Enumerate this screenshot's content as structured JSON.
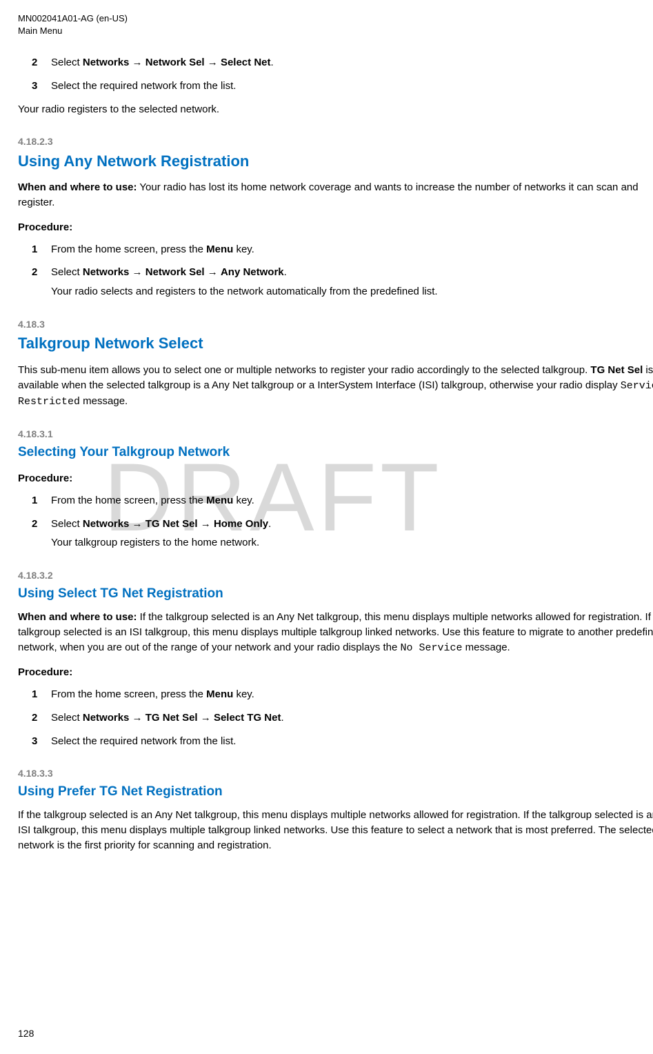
{
  "header": {
    "doc_id": "MN002041A01-AG (en-US)",
    "section": "Main Menu"
  },
  "watermark": "DRAFT",
  "page_number": "128",
  "intro_steps": {
    "s2_pre": "Select ",
    "s2_b1": "Networks",
    "s2_arrow1": " → ",
    "s2_b2": "Network Sel",
    "s2_arrow2": " → ",
    "s2_b3": "Select Net",
    "s2_post": ".",
    "s3": "Select the required network from the list."
  },
  "intro_result": "Your radio registers to the selected network.",
  "sec1": {
    "num": "4.18.2.3",
    "title": "Using Any Network Registration",
    "use_label": "When and where to use:",
    "use_text": " Your radio has lost its home network coverage and wants to increase the number of networks it can scan and register.",
    "proc": "Procedure:",
    "s1_pre": "From the home screen, press the ",
    "s1_b": "Menu",
    "s1_post": " key.",
    "s2_pre": "Select ",
    "s2_b1": "Networks",
    "s2_arrow1": " → ",
    "s2_b2": "Network Sel",
    "s2_arrow2": " → ",
    "s2_b3": "Any Network",
    "s2_post": ".",
    "s2_result": "Your radio selects and registers to the network automatically from the predefined list."
  },
  "sec2": {
    "num": "4.18.3",
    "title": "Talkgroup Network Select",
    "body_pre": "This sub-menu item allows you to select one or multiple networks to register your radio accordingly to the selected talkgroup. ",
    "body_b": "TG Net Sel",
    "body_mid": " is available when the selected talkgroup is a Any Net talkgroup or a InterSystem Interface (ISI) talkgroup, otherwise your radio display ",
    "body_mono": "Service Restricted",
    "body_post": " message."
  },
  "sec3": {
    "num": "4.18.3.1",
    "title": "Selecting Your Talkgroup Network",
    "proc": "Procedure:",
    "s1_pre": "From the home screen, press the ",
    "s1_b": "Menu",
    "s1_post": " key.",
    "s2_pre": "Select ",
    "s2_b1": "Networks",
    "s2_arrow1": " → ",
    "s2_b2": "TG Net Sel",
    "s2_arrow2": " → ",
    "s2_b3": "Home Only",
    "s2_post": ".",
    "s2_result": "Your talkgroup registers to the home network."
  },
  "sec4": {
    "num": "4.18.3.2",
    "title": "Using Select TG Net Registration",
    "use_label": "When and where to use:",
    "use_text_pre": " If the talkgroup selected is an Any Net talkgroup, this menu displays multiple networks allowed for registration. If the talkgroup selected is an ISI talkgroup, this menu displays multiple talkgroup linked networks. Use this feature to migrate to another predefined network, when you are out of the range of your network and your radio displays the ",
    "use_mono": "No Service",
    "use_text_post": " message.",
    "proc": "Procedure:",
    "s1_pre": "From the home screen, press the ",
    "s1_b": "Menu",
    "s1_post": " key.",
    "s2_pre": "Select ",
    "s2_b1": "Networks",
    "s2_arrow1": " → ",
    "s2_b2": "TG Net Sel",
    "s2_arrow2": " → ",
    "s2_b3": "Select TG Net",
    "s2_post": ".",
    "s3": "Select the required network from the list."
  },
  "sec5": {
    "num": "4.18.3.3",
    "title": "Using Prefer TG Net Registration",
    "body": "If the talkgroup selected is an Any Net talkgroup, this menu displays multiple networks allowed for registration. If the talkgroup selected is an ISI talkgroup, this menu displays multiple talkgroup linked networks. Use this feature to select a network that is most preferred. The selected network is the first priority for scanning and registration."
  }
}
